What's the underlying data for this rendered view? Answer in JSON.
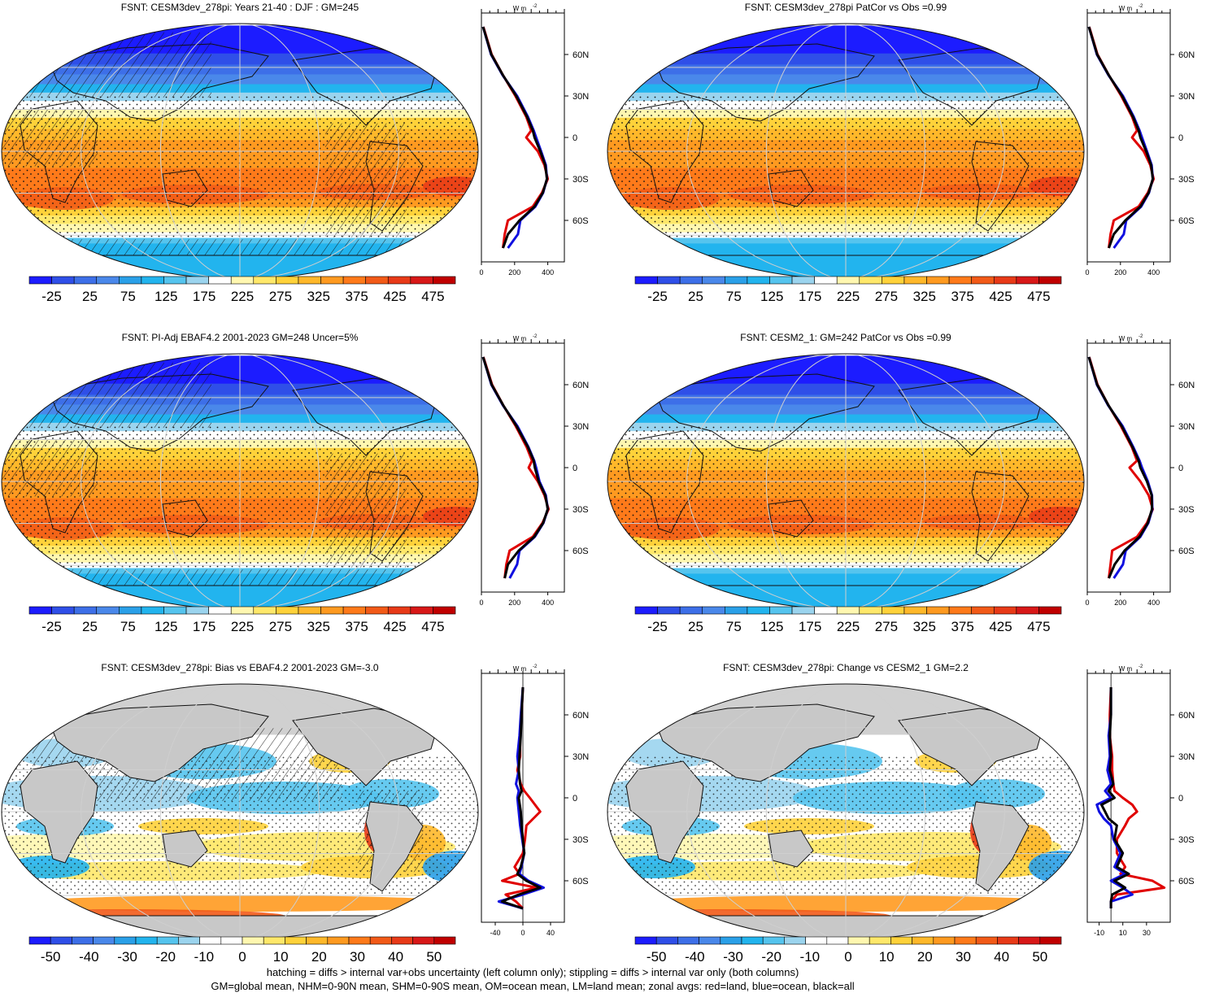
{
  "colors": {
    "full_scale": [
      "#1c1cff",
      "#2f4fe8",
      "#3d6fe8",
      "#4a88ea",
      "#2aa0e8",
      "#22b4ee",
      "#55c4ee",
      "#9bd4ee",
      "#ffffff",
      "#fff7b0",
      "#ffe86a",
      "#ffd23a",
      "#ffb82a",
      "#ff9a20",
      "#ff7a1a",
      "#f25a18",
      "#e83a18",
      "#d81818",
      "#c00000"
    ],
    "diff_scale": [
      "#1c1cff",
      "#2f4fe8",
      "#3d6fe8",
      "#4a88ea",
      "#2aa0e8",
      "#22b4ee",
      "#55c4ee",
      "#9bd4ee",
      "#ffffff",
      "#ffffff",
      "#fff7b0",
      "#ffe86a",
      "#ffd23a",
      "#ffb82a",
      "#ff9a20",
      "#ff7a1a",
      "#f25a18",
      "#e83a18",
      "#d81818",
      "#c00000"
    ],
    "land_line": "#e00000",
    "ocean_line": "#1010e0",
    "all_line": "#000000",
    "missing": "#c8c8c8"
  },
  "units_label": "W m",
  "units_exp": "-2",
  "panels": [
    {
      "title": "FSNT: CESM3dev_278pi: Years 21-40 : DJF : GM=245",
      "kind": "full",
      "hatch": true,
      "colorbar_labels": [
        "-25",
        "25",
        "75",
        "125",
        "175",
        "225",
        "275",
        "325",
        "375",
        "425",
        "475"
      ],
      "zonal_xticks": [
        "0",
        "200",
        "400"
      ]
    },
    {
      "title": "FSNT: CESM3dev_278pi PatCor vs Obs =0.99",
      "kind": "full",
      "hatch": false,
      "colorbar_labels": [
        "-25",
        "25",
        "75",
        "125",
        "175",
        "225",
        "275",
        "325",
        "375",
        "425",
        "475"
      ],
      "zonal_xticks": [
        "0",
        "200",
        "400"
      ]
    },
    {
      "title": "FSNT: PI-Adj EBAF4.2 2001-2023 GM=248 Uncer=5%",
      "kind": "full",
      "hatch": true,
      "colorbar_labels": [
        "-25",
        "25",
        "75",
        "125",
        "175",
        "225",
        "275",
        "325",
        "375",
        "425",
        "475"
      ],
      "zonal_xticks": [
        "0",
        "200",
        "400"
      ]
    },
    {
      "title": "FSNT: CESM2_1: GM=242 PatCor vs Obs =0.99",
      "kind": "full",
      "hatch": false,
      "colorbar_labels": [
        "-25",
        "25",
        "75",
        "125",
        "175",
        "225",
        "275",
        "325",
        "375",
        "425",
        "475"
      ],
      "zonal_xticks": [
        "0",
        "200",
        "400"
      ]
    },
    {
      "title": "FSNT: CESM3dev_278pi: Bias vs EBAF4.2 2001-2023 GM=-3.0",
      "kind": "diff",
      "hatch": true,
      "colorbar_labels": [
        "-50",
        "-40",
        "-30",
        "-20",
        "-10",
        "0",
        "10",
        "20",
        "30",
        "40",
        "50"
      ],
      "zonal_xticks": [
        "-40",
        "0",
        "40"
      ]
    },
    {
      "title": "FSNT: CESM3dev_278pi: Change vs CESM2_1 GM=2.2",
      "kind": "diff",
      "hatch": false,
      "colorbar_labels": [
        "-50",
        "-40",
        "-30",
        "-20",
        "-10",
        "0",
        "10",
        "20",
        "30",
        "40",
        "50"
      ],
      "zonal_xticks": [
        "-10",
        "10",
        "30"
      ]
    }
  ],
  "lat_labels": [
    "60N",
    "30N",
    "0",
    "30S",
    "60S"
  ],
  "chart_data": [
    {
      "type": "line",
      "title": "FSNT: CESM3dev_278pi: Years 21-40 : DJF : GM=245",
      "xlabel": "W m-2",
      "x_ticks": [
        0,
        200,
        400
      ],
      "xlim": [
        0,
        500
      ],
      "lat": [
        80,
        60,
        45,
        30,
        15,
        5,
        0,
        -10,
        -20,
        -30,
        -40,
        -50,
        -60,
        -70,
        -80
      ],
      "series": [
        {
          "name": "all",
          "values": [
            10,
            60,
            130,
            210,
            275,
            310,
            320,
            355,
            385,
            395,
            370,
            320,
            230,
            160,
            130
          ]
        },
        {
          "name": "land",
          "values": [
            12,
            62,
            130,
            205,
            270,
            300,
            270,
            340,
            380,
            400,
            365,
            310,
            160,
            140,
            130
          ]
        },
        {
          "name": "ocean",
          "values": [
            10,
            58,
            128,
            215,
            280,
            315,
            330,
            360,
            388,
            395,
            372,
            325,
            235,
            220,
            160
          ]
        }
      ]
    },
    {
      "type": "line",
      "title": "FSNT: CESM3dev_278pi PatCor vs Obs =0.99",
      "xlabel": "W m-2",
      "x_ticks": [
        0,
        200,
        400
      ],
      "xlim": [
        0,
        500
      ],
      "lat": [
        80,
        60,
        45,
        30,
        15,
        5,
        0,
        -10,
        -20,
        -30,
        -40,
        -50,
        -60,
        -70,
        -80
      ],
      "series": [
        {
          "name": "all",
          "values": [
            10,
            60,
            130,
            210,
            275,
            310,
            320,
            355,
            385,
            395,
            370,
            320,
            230,
            160,
            130
          ]
        },
        {
          "name": "land",
          "values": [
            12,
            62,
            130,
            205,
            270,
            300,
            270,
            340,
            380,
            400,
            365,
            310,
            160,
            140,
            130
          ]
        },
        {
          "name": "ocean",
          "values": [
            10,
            58,
            128,
            215,
            280,
            315,
            330,
            360,
            388,
            395,
            372,
            325,
            235,
            220,
            160
          ]
        }
      ]
    },
    {
      "type": "line",
      "title": "FSNT: PI-Adj EBAF4.2 2001-2023 GM=248 Uncer=5%",
      "xlabel": "W m-2",
      "x_ticks": [
        0,
        200,
        400
      ],
      "xlim": [
        0,
        500
      ],
      "lat": [
        80,
        60,
        45,
        30,
        15,
        5,
        0,
        -10,
        -20,
        -30,
        -40,
        -50,
        -60,
        -70,
        -80
      ],
      "series": [
        {
          "name": "all",
          "values": [
            10,
            62,
            132,
            212,
            280,
            315,
            322,
            345,
            385,
            400,
            372,
            318,
            225,
            160,
            140
          ]
        },
        {
          "name": "land",
          "values": [
            12,
            64,
            132,
            207,
            272,
            305,
            285,
            340,
            380,
            405,
            368,
            310,
            170,
            150,
            140
          ]
        },
        {
          "name": "ocean",
          "values": [
            10,
            60,
            130,
            217,
            283,
            318,
            330,
            350,
            388,
            400,
            374,
            322,
            230,
            215,
            170
          ]
        }
      ]
    },
    {
      "type": "line",
      "title": "FSNT: CESM2_1: GM=242 PatCor vs Obs =0.99",
      "xlabel": "W m-2",
      "x_ticks": [
        0,
        200,
        400
      ],
      "xlim": [
        0,
        500
      ],
      "lat": [
        80,
        60,
        45,
        30,
        15,
        5,
        0,
        -10,
        -20,
        -30,
        -40,
        -50,
        -60,
        -70,
        -80
      ],
      "series": [
        {
          "name": "all",
          "values": [
            10,
            60,
            128,
            208,
            272,
            310,
            320,
            360,
            388,
            390,
            365,
            315,
            225,
            165,
            130
          ]
        },
        {
          "name": "land",
          "values": [
            12,
            62,
            128,
            203,
            268,
            300,
            255,
            320,
            370,
            395,
            360,
            300,
            150,
            140,
            130
          ]
        },
        {
          "name": "ocean",
          "values": [
            10,
            58,
            126,
            213,
            277,
            315,
            330,
            365,
            390,
            392,
            368,
            320,
            232,
            215,
            160
          ]
        }
      ]
    },
    {
      "type": "line",
      "title": "FSNT: CESM3dev_278pi: Bias vs EBAF4.2 2001-2023 GM=-3.0",
      "xlabel": "W m-2",
      "x_ticks": [
        -40,
        0,
        40
      ],
      "xlim": [
        -60,
        60
      ],
      "lat": [
        80,
        60,
        45,
        30,
        20,
        10,
        5,
        0,
        -10,
        -20,
        -30,
        -40,
        -50,
        -55,
        -60,
        -65,
        -70,
        -75,
        -80
      ],
      "series": [
        {
          "name": "all",
          "values": [
            0,
            -2,
            -3,
            -5,
            -6,
            -4,
            -2,
            -6,
            -3,
            -2,
            0,
            2,
            -3,
            -8,
            5,
            25,
            -6,
            -30,
            0
          ]
        },
        {
          "name": "land",
          "values": [
            0,
            -2,
            -4,
            -4,
            -8,
            -3,
            2,
            10,
            25,
            5,
            3,
            0,
            -12,
            -5,
            -30,
            20,
            -25,
            -10,
            0
          ]
        },
        {
          "name": "ocean",
          "values": [
            0,
            -3,
            -5,
            -8,
            -6,
            -10,
            -6,
            -8,
            -6,
            -4,
            -1,
            2,
            -2,
            -5,
            8,
            30,
            0,
            -35,
            0
          ]
        }
      ]
    },
    {
      "type": "line",
      "title": "FSNT: CESM3dev_278pi: Change vs CESM2_1 GM=2.2",
      "xlabel": "W m-2",
      "x_ticks": [
        -10,
        10,
        30
      ],
      "xlim": [
        -20,
        50
      ],
      "lat": [
        80,
        60,
        45,
        30,
        20,
        10,
        5,
        0,
        -5,
        -10,
        -15,
        -20,
        -30,
        -40,
        -50,
        -55,
        -60,
        -65,
        -70,
        -75,
        -80
      ],
      "series": [
        {
          "name": "all",
          "values": [
            0,
            0,
            -1,
            0,
            -1,
            2,
            -2,
            3,
            -8,
            -5,
            -2,
            5,
            3,
            10,
            5,
            15,
            3,
            12,
            1,
            0,
            0
          ]
        },
        {
          "name": "land",
          "values": [
            0,
            -1,
            -1,
            1,
            1,
            2,
            3,
            10,
            18,
            22,
            15,
            12,
            5,
            5,
            12,
            8,
            35,
            45,
            5,
            0,
            0
          ]
        },
        {
          "name": "ocean",
          "values": [
            0,
            0,
            -2,
            -1,
            -3,
            0,
            -5,
            0,
            -12,
            -10,
            -6,
            0,
            2,
            8,
            3,
            12,
            0,
            10,
            18,
            0,
            0
          ]
        }
      ]
    }
  ],
  "footer": {
    "line1": "hatching = diffs > internal var+obs uncertainty (left column only); stippling = diffs > internal var only (both columns)",
    "line2": "GM=global mean, NHM=0-90N mean, SHM=0-90S mean, OM=ocean mean, LM=land mean; zonal avgs: red=land, blue=ocean, black=all"
  }
}
